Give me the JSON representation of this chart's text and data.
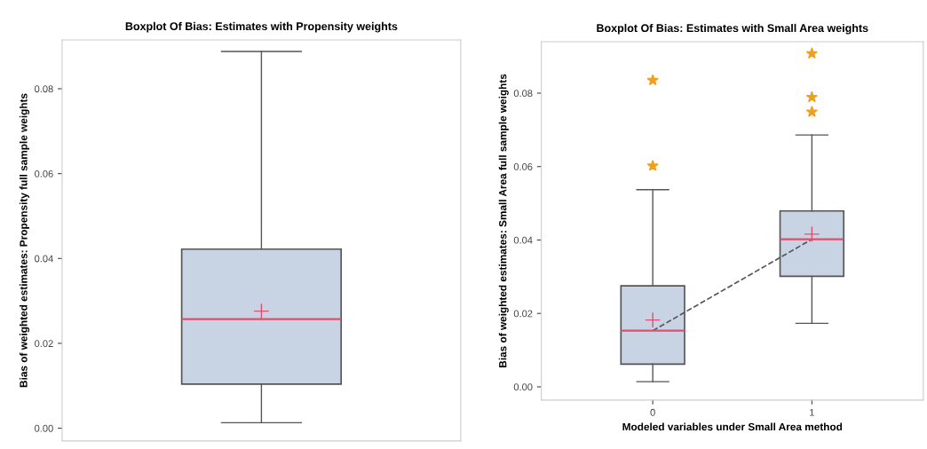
{
  "chart_data": [
    {
      "type": "box",
      "title": "Boxplot Of Bias: Estimates with Propensity weights",
      "ylabel": "Bias of weighted estimates: Propensity full sample weights",
      "categories": [
        null
      ],
      "ylim": [
        -0.003,
        0.0915
      ],
      "yticks": [
        {
          "value": 0.0,
          "label": "0.00"
        },
        {
          "value": 0.02,
          "label": "0.02"
        },
        {
          "value": 0.04,
          "label": "0.04"
        },
        {
          "value": 0.06,
          "label": "0.06"
        },
        {
          "value": 0.08,
          "label": "0.08"
        }
      ],
      "tick_labels": "y",
      "grid": false,
      "series": [
        {
          "color": "#c8d4e4",
          "boxes": [
            {
              "low": 0.0013,
              "q1": 0.0104,
              "median": 0.0257,
              "q3": 0.0422,
              "high": 0.0888,
              "mean": 0.0276
            }
          ]
        }
      ]
    },
    {
      "type": "box",
      "title": "Boxplot Of Bias: Estimates with Small Area weights",
      "ylabel": "Bias of weighted estimates: Small Area full sample weights",
      "xlabel": "Modeled variables under Small Area method",
      "categories": [
        "0",
        "1"
      ],
      "ylim": [
        -0.0036,
        0.094
      ],
      "yticks": [
        {
          "value": 0.0,
          "label": "0.00"
        },
        {
          "value": 0.02,
          "label": "0.02"
        },
        {
          "value": 0.04,
          "label": "0.04"
        },
        {
          "value": 0.06,
          "label": "0.06"
        },
        {
          "value": 0.08,
          "label": "0.08"
        }
      ],
      "grid": false,
      "series": [
        {
          "color": "#c8d4e4",
          "boxes": [
            {
              "low": 0.0014,
              "q1": 0.0062,
              "median": 0.0153,
              "q3": 0.0275,
              "high": 0.0537,
              "mean": 0.0182,
              "outliers": [
                0.0602,
                0.0835
              ]
            },
            {
              "low": 0.0173,
              "q1": 0.0301,
              "median": 0.0402,
              "q3": 0.0479,
              "high": 0.0686,
              "mean": 0.0416,
              "outliers": [
                0.0749,
                0.0789,
                0.0908
              ]
            }
          ]
        },
        {
          "type": "line",
          "color": "#555555",
          "line_style": "dashed",
          "marker": "none",
          "x": [
            "0",
            "1"
          ],
          "values": [
            0.0153,
            0.0402
          ]
        }
      ]
    }
  ]
}
